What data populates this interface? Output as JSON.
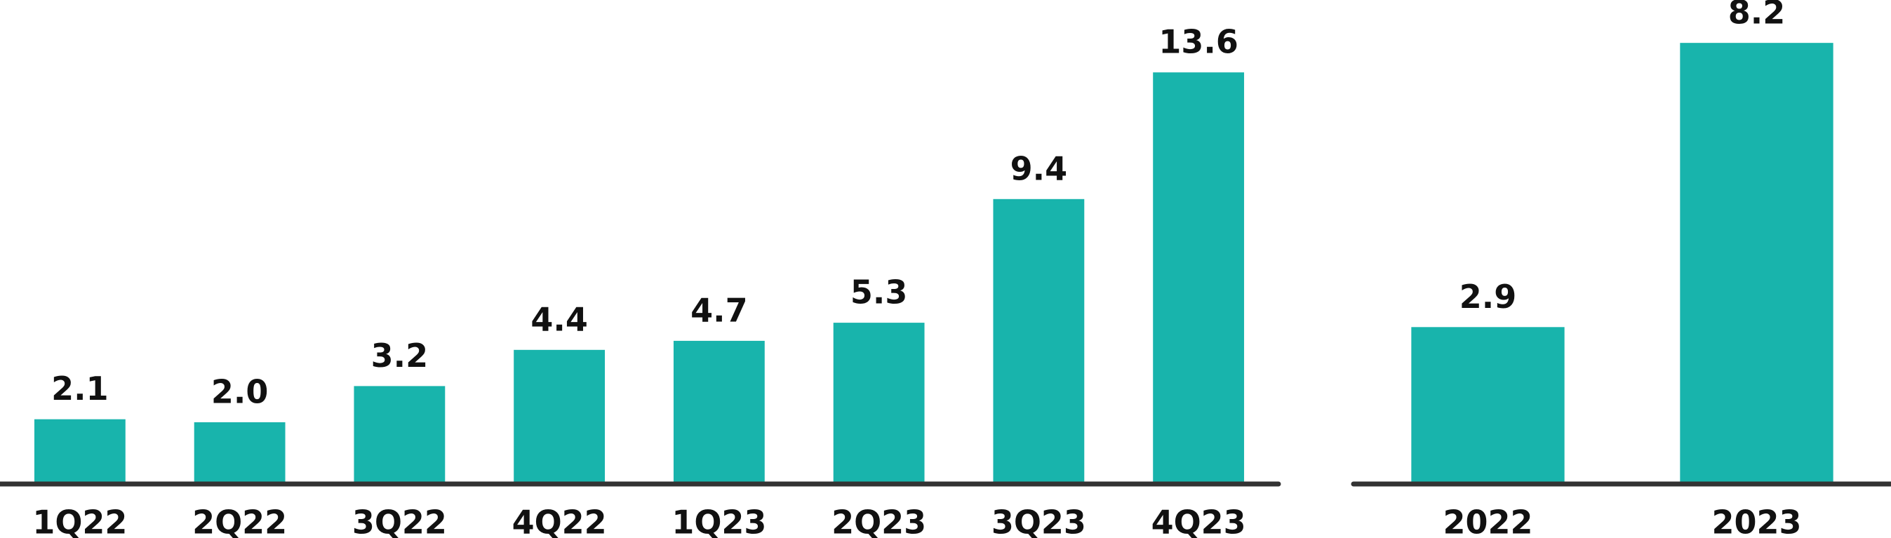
{
  "chart_data": [
    {
      "type": "bar",
      "categories": [
        "1Q22",
        "2Q22",
        "3Q22",
        "4Q22",
        "1Q23",
        "2Q23",
        "3Q23",
        "4Q23"
      ],
      "values": [
        2.1,
        2.0,
        3.2,
        4.4,
        4.7,
        5.3,
        9.4,
        13.6
      ],
      "value_labels": [
        "2.1",
        "2.0",
        "3.2",
        "4.4",
        "4.7",
        "5.3",
        "9.4",
        "13.6"
      ],
      "color": "#18b4ac",
      "ylim": [
        0,
        16
      ]
    },
    {
      "type": "bar",
      "categories": [
        "2022",
        "2023"
      ],
      "values": [
        2.9,
        8.2
      ],
      "value_labels": [
        "2.9",
        "8.2"
      ],
      "color": "#18b4ac",
      "ylim": [
        0,
        9
      ]
    }
  ]
}
